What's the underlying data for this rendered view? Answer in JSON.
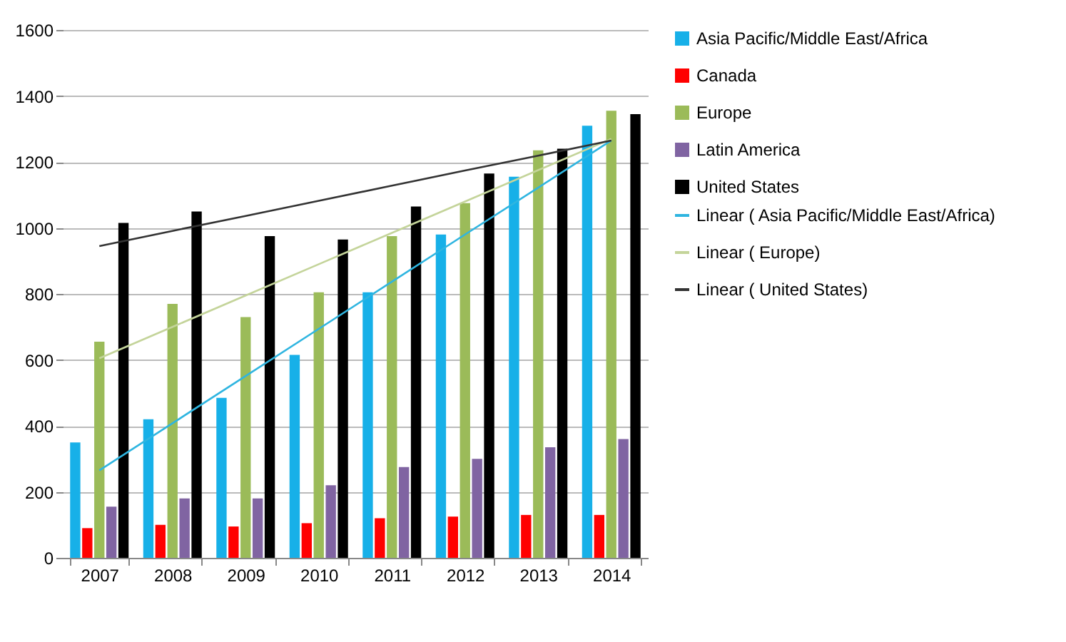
{
  "chart_data": {
    "type": "bar",
    "categories": [
      "2007",
      "2008",
      "2009",
      "2010",
      "2011",
      "2012",
      "2013",
      "2014"
    ],
    "series": [
      {
        "name": "Asia Pacific/Middle East/Africa",
        "color": "#17b0e8",
        "values": [
          350,
          420,
          485,
          615,
          805,
          980,
          1155,
          1310
        ]
      },
      {
        "name": "Canada",
        "color": "#ff0000",
        "values": [
          90,
          100,
          95,
          105,
          120,
          125,
          130,
          130
        ]
      },
      {
        "name": "Europe",
        "color": "#9bbb59",
        "values": [
          655,
          770,
          730,
          805,
          975,
          1075,
          1235,
          1355
        ]
      },
      {
        "name": "Latin America",
        "color": "#8064a2",
        "values": [
          155,
          180,
          180,
          220,
          275,
          300,
          335,
          360
        ]
      },
      {
        "name": "United States",
        "color": "#000000",
        "values": [
          1015,
          1050,
          975,
          965,
          1065,
          1165,
          1240,
          1345
        ]
      },
      {
        "name": "Linear ( Asia Pacific/Middle East/Africa)",
        "type": "line",
        "color": "#2fb5e0",
        "values": [
          265,
          408,
          551,
          694,
          837,
          980,
          1122,
          1265
        ]
      },
      {
        "name": "Linear ( Europe)",
        "type": "line",
        "color": "#c4d49a",
        "values": [
          605,
          700,
          795,
          890,
          985,
          1080,
          1175,
          1270
        ]
      },
      {
        "name": "Linear ( United States)",
        "type": "line",
        "color": "#333333",
        "values": [
          945,
          991,
          1036,
          1082,
          1128,
          1174,
          1219,
          1265
        ]
      }
    ],
    "ylim": [
      0,
      1600
    ],
    "yticks": [
      0,
      200,
      400,
      600,
      800,
      1000,
      1200,
      1400,
      1600
    ],
    "grid": "y",
    "legend": "right",
    "line_style": "solid",
    "marker": "none"
  }
}
